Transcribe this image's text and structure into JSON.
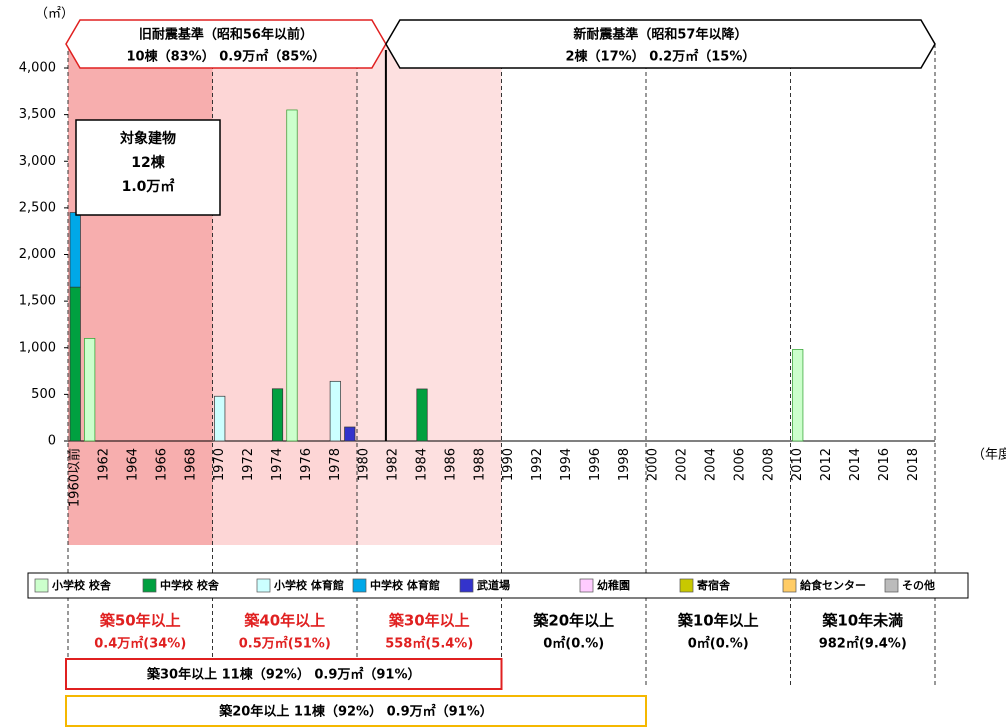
{
  "chart_data": {
    "type": "bar",
    "stacked": true,
    "y_unit": "（㎡）",
    "x_unit": "（年度）",
    "categories": [
      "1960以前",
      null,
      "1962",
      null,
      "1964",
      null,
      "1966",
      null,
      "1968",
      null,
      "1970",
      null,
      "1972",
      null,
      "1974",
      null,
      "1976",
      null,
      "1978",
      null,
      "1980",
      null,
      "1982",
      null,
      "1984",
      null,
      "1986",
      null,
      "1988",
      null,
      "1990",
      null,
      "1992",
      null,
      "1994",
      null,
      "1996",
      null,
      "1998",
      null,
      "2000",
      null,
      "2002",
      null,
      "2004",
      null,
      "2006",
      null,
      "2008",
      null,
      "2010",
      null,
      "2012",
      null,
      "2014",
      null,
      "2016",
      null,
      "2018",
      null
    ],
    "series": [
      {
        "name": "小学校 校舎",
        "color": "#ccffcc",
        "values": [
          null,
          1100,
          null,
          null,
          null,
          null,
          null,
          null,
          null,
          null,
          null,
          null,
          null,
          null,
          null,
          3550,
          null,
          null,
          null,
          null,
          null,
          null,
          null,
          null,
          null,
          null,
          null,
          null,
          null,
          null,
          null,
          null,
          null,
          null,
          null,
          null,
          null,
          null,
          null,
          null,
          null,
          null,
          null,
          null,
          null,
          null,
          null,
          null,
          null,
          null,
          982,
          null,
          null,
          null,
          null,
          null,
          null,
          null,
          null,
          null
        ]
      },
      {
        "name": "中学校 校舎",
        "color": "#00a040",
        "values": [
          1650,
          null,
          null,
          null,
          null,
          null,
          null,
          null,
          null,
          null,
          null,
          null,
          null,
          null,
          560,
          null,
          null,
          null,
          null,
          null,
          null,
          null,
          null,
          null,
          558,
          null,
          null,
          null,
          null,
          null,
          null,
          null,
          null,
          null,
          null,
          null,
          null,
          null,
          null,
          null,
          null,
          null,
          null,
          null,
          null,
          null,
          null,
          null,
          null,
          null,
          null,
          null,
          null,
          null,
          null,
          null,
          null,
          null,
          null,
          null
        ]
      },
      {
        "name": "小学校 体育館",
        "color": "#ccffff",
        "values": [
          null,
          null,
          null,
          null,
          null,
          null,
          null,
          null,
          null,
          null,
          480,
          null,
          null,
          null,
          null,
          null,
          null,
          null,
          640,
          null,
          null,
          null,
          null,
          null,
          null,
          null,
          null,
          null,
          null,
          null,
          null,
          null,
          null,
          null,
          null,
          null,
          null,
          null,
          null,
          null,
          null,
          null,
          null,
          null,
          null,
          null,
          null,
          null,
          null,
          null,
          null,
          null,
          null,
          null,
          null,
          null,
          null,
          null,
          null,
          null
        ]
      },
      {
        "name": "中学校 体育館",
        "color": "#00a8e8",
        "values": [
          800,
          null,
          null,
          null,
          null,
          null,
          null,
          null,
          null,
          null,
          null,
          null,
          null,
          null,
          null,
          null,
          null,
          null,
          null,
          null,
          null,
          null,
          null,
          null,
          null,
          null,
          null,
          null,
          null,
          null,
          null,
          null,
          null,
          null,
          null,
          null,
          null,
          null,
          null,
          null,
          null,
          null,
          null,
          null,
          null,
          null,
          null,
          null,
          null,
          null,
          null,
          null,
          null,
          null,
          null,
          null,
          null,
          null,
          null,
          null
        ]
      },
      {
        "name": "武道場",
        "color": "#3333cc",
        "values": [
          null,
          null,
          null,
          null,
          null,
          null,
          null,
          null,
          null,
          null,
          null,
          null,
          null,
          null,
          null,
          null,
          null,
          null,
          null,
          150,
          null,
          null,
          null,
          null,
          null,
          null,
          null,
          null,
          null,
          null,
          null,
          null,
          null,
          null,
          null,
          null,
          null,
          null,
          null,
          null,
          null,
          null,
          null,
          null,
          null,
          null,
          null,
          null,
          null,
          null,
          null,
          null,
          null,
          null,
          null,
          null,
          null,
          null,
          null,
          null
        ]
      },
      {
        "name": "幼稚園",
        "color": "#ffccff",
        "values": [
          null,
          null,
          null,
          null,
          null,
          null,
          null,
          null,
          null,
          null,
          null,
          null,
          null,
          null,
          null,
          null,
          null,
          null,
          null,
          null,
          null,
          null,
          null,
          null,
          null,
          null,
          null,
          null,
          null,
          null,
          null,
          null,
          null,
          null,
          null,
          null,
          null,
          null,
          null,
          null,
          null,
          null,
          null,
          null,
          null,
          null,
          null,
          null,
          null,
          null,
          null,
          null,
          null,
          null,
          null,
          null,
          null,
          null,
          null,
          null
        ]
      },
      {
        "name": "寄宿舎",
        "color": "#c8c800",
        "values": [
          null,
          null,
          null,
          null,
          null,
          null,
          null,
          null,
          null,
          null,
          null,
          null,
          null,
          null,
          null,
          null,
          null,
          null,
          null,
          null,
          null,
          null,
          null,
          null,
          null,
          null,
          null,
          null,
          null,
          null,
          null,
          null,
          null,
          null,
          null,
          null,
          null,
          null,
          null,
          null,
          null,
          null,
          null,
          null,
          null,
          null,
          null,
          null,
          null,
          null,
          null,
          null,
          null,
          null,
          null,
          null,
          null,
          null,
          null,
          null
        ]
      },
      {
        "name": "給食センター",
        "color": "#ffcc66",
        "values": [
          null,
          null,
          null,
          null,
          null,
          null,
          null,
          null,
          null,
          null,
          null,
          null,
          null,
          null,
          null,
          null,
          null,
          null,
          null,
          null,
          null,
          null,
          null,
          null,
          null,
          null,
          null,
          null,
          null,
          null,
          null,
          null,
          null,
          null,
          null,
          null,
          null,
          null,
          null,
          null,
          null,
          null,
          null,
          null,
          null,
          null,
          null,
          null,
          null,
          null,
          null,
          null,
          null,
          null,
          null,
          null,
          null,
          null,
          null,
          null
        ]
      },
      {
        "name": "その他",
        "color": "#bbbbbb",
        "values": [
          null,
          null,
          null,
          null,
          null,
          null,
          null,
          null,
          null,
          null,
          null,
          null,
          null,
          null,
          null,
          null,
          null,
          null,
          null,
          null,
          null,
          null,
          null,
          null,
          null,
          null,
          null,
          null,
          null,
          null,
          null,
          null,
          null,
          null,
          null,
          null,
          null,
          null,
          null,
          null,
          null,
          null,
          null,
          null,
          null,
          null,
          null,
          null,
          null,
          null,
          null,
          null,
          null,
          null,
          null,
          null,
          null,
          null,
          null,
          null
        ]
      }
    ],
    "ylim": [
      0,
      4000
    ],
    "yticks": [
      0,
      500,
      {
        "value": 1000,
        "label": "1,000"
      },
      {
        "value": 1500,
        "label": "1,500"
      },
      {
        "value": 2000,
        "label": "2,000"
      },
      {
        "value": 2500,
        "label": "2,500"
      },
      {
        "value": 3000,
        "label": "3,000"
      },
      {
        "value": 3500,
        "label": "3,500"
      },
      {
        "value": 4000,
        "label": "4,000"
      }
    ],
    "eras": [
      {
        "title": "旧耐震基準（昭和56年以前）",
        "detail": "10棟（83%） 0.9万㎡（85%）"
      },
      {
        "title": "新耐震基準（昭和57年以降）",
        "detail": "2棟（17%） 0.2万㎡（15%）"
      }
    ],
    "total_box": [
      "対象建物",
      "12棟",
      "1.0万㎡"
    ],
    "age_bands": [
      {
        "label": "築50年以上",
        "detail": "0.4万㎡(34%)"
      },
      {
        "label": "築40年以上",
        "detail": "0.5万㎡(51%)"
      },
      {
        "label": "築30年以上",
        "detail": "558㎡(5.4%)"
      },
      {
        "label": "築20年以上",
        "detail": "0㎡(0.%)"
      },
      {
        "label": "築10年以上",
        "detail": "0㎡(0.%)"
      },
      {
        "label": "築10年未満",
        "detail": "982㎡(9.4%)"
      }
    ],
    "summaries": [
      "築30年以上 11棟（92%） 0.9万㎡（91%）",
      "築20年以上 11棟（92%） 0.9万㎡（91%）"
    ]
  }
}
